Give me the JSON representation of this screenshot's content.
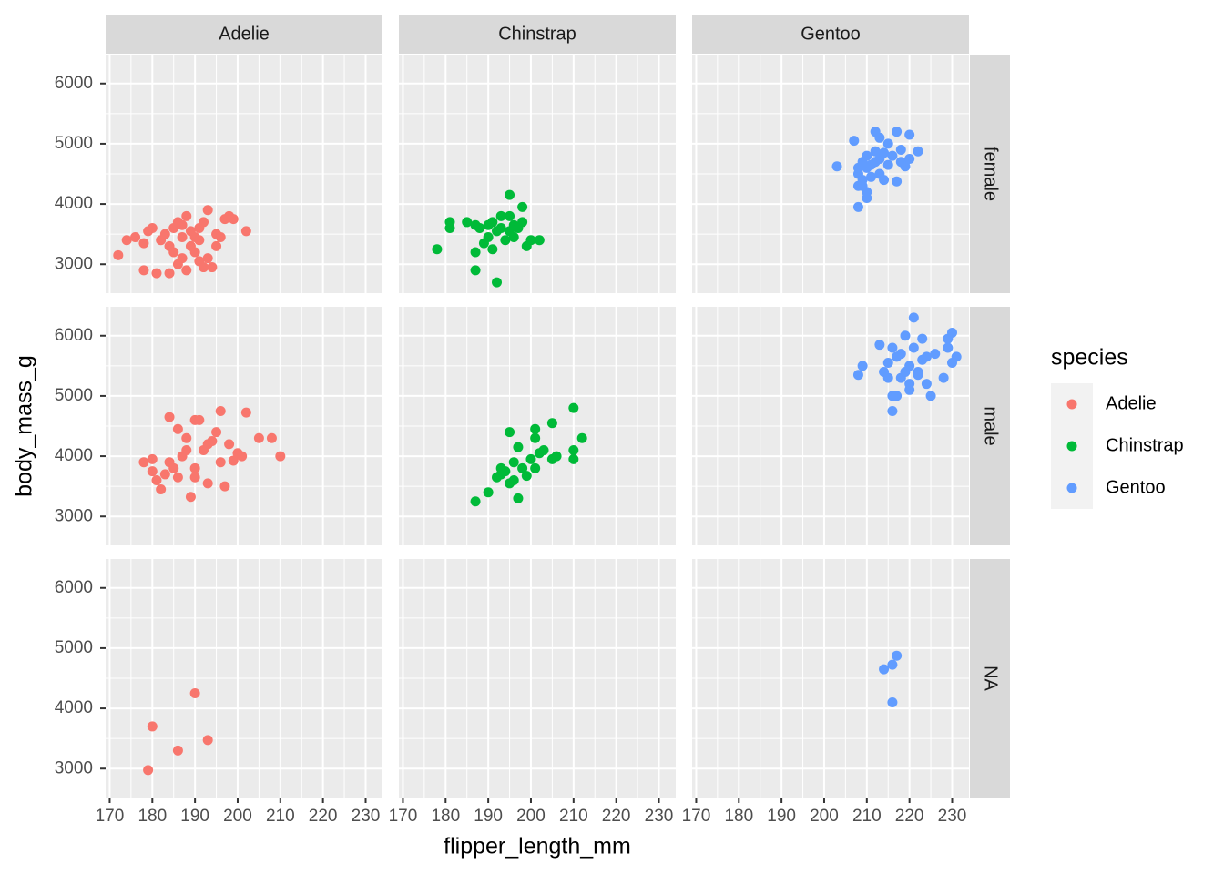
{
  "chart_data": {
    "type": "scatter",
    "x_label": "flipper_length_mm",
    "y_label": "body_mass_g",
    "legend_title": "species",
    "legend_position": "right",
    "columns": [
      "Adelie",
      "Chinstrap",
      "Gentoo"
    ],
    "rows": [
      "female",
      "male",
      "NA"
    ],
    "xlim": [
      169.05,
      233.95
    ],
    "xticks": [
      170,
      180,
      190,
      200,
      210,
      220,
      230
    ],
    "ylim": [
      2520,
      6480
    ],
    "yticks": [
      3000,
      4000,
      5000,
      6000
    ],
    "grid": true,
    "series": [
      {
        "name": "Adelie",
        "color": "#F8766D",
        "panels": [
          {
            "x": [
              172,
              174,
              176,
              178,
              178,
              179,
              180,
              181,
              182,
              183,
              184,
              184,
              185,
              185,
              186,
              187,
              187,
              188,
              188,
              189,
              190,
              190,
              191,
              191,
              192,
              193,
              193,
              194,
              195,
              195,
              196,
              197,
              198,
              199,
              202,
              186,
              187,
              189,
              191,
              192
            ],
            "values": [
              3150,
              3400,
              3450,
              2900,
              3350,
              3550,
              3600,
              2850,
              3400,
              3500,
              2850,
              3300,
              3600,
              3200,
              3700,
              3100,
              3450,
              3800,
              2900,
              3300,
              3200,
              3450,
              3050,
              3600,
              3700,
              3900,
              3100,
              2950,
              3500,
              3300,
              3450,
              3750,
              3800,
              3750,
              3550,
              3000,
              3650,
              3550,
              3400,
              2950
            ]
          },
          {
            "x": [
              178,
              180,
              180,
              181,
              182,
              183,
              184,
              184,
              185,
              186,
              186,
              187,
              188,
              189,
              190,
              190,
              191,
              192,
              193,
              194,
              195,
              196,
              196,
              197,
              198,
              199,
              200,
              201,
              202,
              205,
              208,
              210,
              188,
              190,
              193
            ],
            "values": [
              3900,
              3950,
              3750,
              3600,
              3450,
              3700,
              3900,
              4650,
              3800,
              4450,
              3650,
              4000,
              4300,
              3325,
              4600,
              3800,
              4600,
              4100,
              4200,
              4250,
              4400,
              3900,
              4750,
              3500,
              4200,
              3925,
              4050,
              4000,
              4725,
              4300,
              4300,
              4000,
              4100,
              3650,
              3550
            ]
          },
          {
            "x": [
              179,
              180,
              186,
              190,
              193
            ],
            "values": [
              2975,
              3700,
              3300,
              4250,
              3475
            ]
          }
        ]
      },
      {
        "name": "Chinstrap",
        "color": "#00BA38",
        "panels": [
          {
            "x": [
              178,
              181,
              181,
              185,
              187,
              187,
              187,
              188,
              189,
              190,
              190,
              191,
              191,
              192,
              192,
              193,
              194,
              195,
              195,
              195,
              196,
              196,
              197,
              198,
              198,
              199,
              200,
              202,
              193
            ],
            "values": [
              3250,
              3700,
              3600,
              3700,
              3650,
              3200,
              2900,
              3600,
              3350,
              3650,
              3450,
              3700,
              3250,
              2700,
              3550,
              3600,
              3400,
              4150,
              3550,
              3800,
              3650,
              3450,
              3600,
              3950,
              3700,
              3300,
              3400,
              3400,
              3800
            ]
          },
          {
            "x": [
              187,
              190,
              192,
              193,
              193,
              194,
              195,
              195,
              196,
              196,
              197,
              197,
              198,
              199,
              200,
              201,
              201,
              201,
              202,
              203,
              205,
              205,
              206,
              210,
              210,
              210,
              212
            ],
            "values": [
              3250,
              3400,
              3650,
              3800,
              3700,
              3750,
              3550,
              4400,
              3900,
              3600,
              3300,
              4150,
              3800,
              3675,
              3950,
              4450,
              3800,
              4300,
              4050,
              4100,
              4550,
              3950,
              4000,
              4100,
              3950,
              4800,
              4300
            ]
          },
          {
            "x": [],
            "values": []
          }
        ]
      },
      {
        "name": "Gentoo",
        "color": "#619CFF",
        "panels": [
          {
            "x": [
              203,
              207,
              208,
              208,
              208,
              208,
              209,
              209,
              210,
              210,
              210,
              211,
              211,
              212,
              212,
              212,
              213,
              213,
              213,
              214,
              214,
              215,
              215,
              216,
              217,
              217,
              218,
              218,
              219,
              220,
              220,
              222,
              210,
              209
            ],
            "values": [
              4625,
              5050,
              3950,
              4300,
              4500,
              4600,
              4400,
              4700,
              4100,
              4600,
              4800,
              4450,
              4650,
              5200,
              4700,
              4875,
              4500,
              4750,
              5100,
              4850,
              4400,
              4650,
              5000,
              4800,
              4375,
              5200,
              4900,
              4700,
              4625,
              5150,
              4750,
              4875,
              4200,
              4300
            ]
          },
          {
            "x": [
              208,
              209,
              213,
              214,
              215,
              216,
              216,
              217,
              217,
              218,
              218,
              219,
              219,
              220,
              220,
              220,
              221,
              221,
              222,
              223,
              223,
              224,
              224,
              225,
              226,
              228,
              229,
              229,
              230,
              230,
              231,
              215,
              216,
              222
            ],
            "values": [
              5350,
              5500,
              5850,
              5400,
              5550,
              5800,
              4750,
              5650,
              5000,
              5700,
              5300,
              5400,
              6000,
              5100,
              5500,
              5200,
              6300,
              5800,
              5400,
              5600,
              5950,
              5650,
              5200,
              5000,
              5700,
              5300,
              5800,
              5950,
              6050,
              5550,
              5650,
              5300,
              5000,
              5350
            ]
          },
          {
            "x": [
              214,
              216,
              217,
              216
            ],
            "values": [
              4650,
              4725,
              4875,
              4100
            ]
          }
        ]
      }
    ]
  }
}
